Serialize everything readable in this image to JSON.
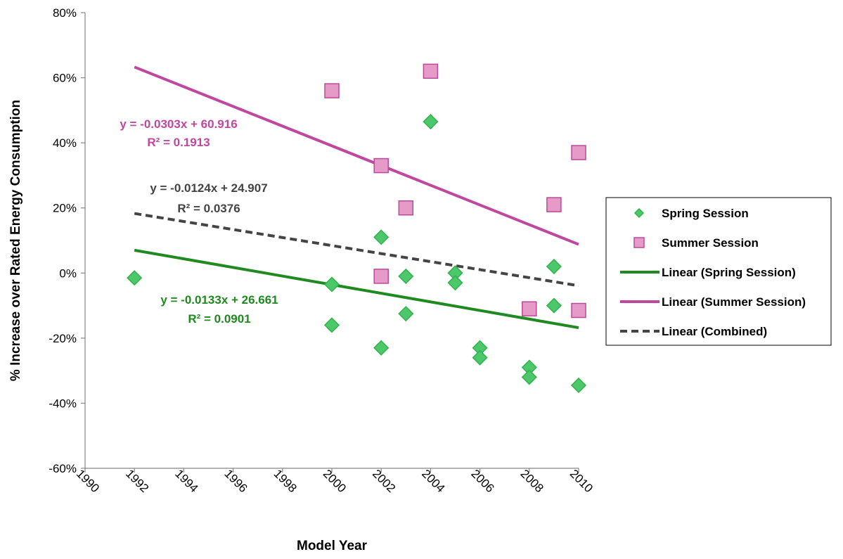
{
  "chart_data": {
    "type": "scatter",
    "title": "",
    "xlabel": "Model Year",
    "ylabel": "% Increase over Rated Energy Consumption",
    "xlim": [
      1990,
      2010
    ],
    "ylim": [
      -60,
      80
    ],
    "x_ticks": [
      "1990",
      "1992",
      "1994",
      "1996",
      "1998",
      "2000",
      "2002",
      "2004",
      "2006",
      "2008",
      "2010"
    ],
    "y_ticks": [
      "-60%",
      "-40%",
      "-20%",
      "0%",
      "20%",
      "40%",
      "60%",
      "80%"
    ],
    "grid": false,
    "legend_position": "right",
    "series": [
      {
        "name": "Spring Session",
        "marker": "diamond",
        "color": "#2fb34a",
        "fill": "#4cc86b",
        "points": [
          [
            1992,
            -1.5
          ],
          [
            2000,
            -3.5
          ],
          [
            2000,
            -16
          ],
          [
            2002,
            11
          ],
          [
            2002,
            -23
          ],
          [
            2003,
            -1
          ],
          [
            2003,
            -12.5
          ],
          [
            2004,
            46.5
          ],
          [
            2005,
            0
          ],
          [
            2005,
            -3
          ],
          [
            2006,
            -23
          ],
          [
            2006,
            -26
          ],
          [
            2008,
            -29
          ],
          [
            2008,
            -32
          ],
          [
            2009,
            2
          ],
          [
            2009,
            -10
          ],
          [
            2010,
            -34.5
          ]
        ]
      },
      {
        "name": "Summer Session",
        "marker": "square",
        "color": "#b84a9a",
        "fill": "#e69ac8",
        "points": [
          [
            2000,
            56
          ],
          [
            2002,
            33
          ],
          [
            2002,
            -1
          ],
          [
            2003,
            20
          ],
          [
            2004,
            62
          ],
          [
            2008,
            -11
          ],
          [
            2009,
            21
          ],
          [
            2010,
            37
          ],
          [
            2010,
            -11.5
          ]
        ]
      }
    ],
    "trendlines": [
      {
        "name": "Linear (Spring Session)",
        "color": "#1f8a1f",
        "dashed": false,
        "x": [
          1992,
          2010
        ],
        "y": [
          7,
          -16.8
        ],
        "equation": "y = -0.0133x + 26.661",
        "r2": "R² = 0.0901"
      },
      {
        "name": "Linear (Summer Session)",
        "color": "#c0479f",
        "dashed": false,
        "x": [
          1992,
          2010
        ],
        "y": [
          63.3,
          8.8
        ],
        "equation": "y = -0.0303x + 60.916",
        "r2": "R² = 0.1913"
      },
      {
        "name": "Linear (Combined)",
        "color": "#444444",
        "dashed": true,
        "x": [
          1992,
          2010
        ],
        "y": [
          18.3,
          -3.9
        ],
        "equation": "y = -0.0124x + 24.907",
        "r2": "R² = 0.0376"
      }
    ],
    "legend": [
      "Spring Session",
      "Summer Session",
      "Linear (Spring Session)",
      "Linear (Summer Session)",
      "Linear (Combined)"
    ]
  }
}
